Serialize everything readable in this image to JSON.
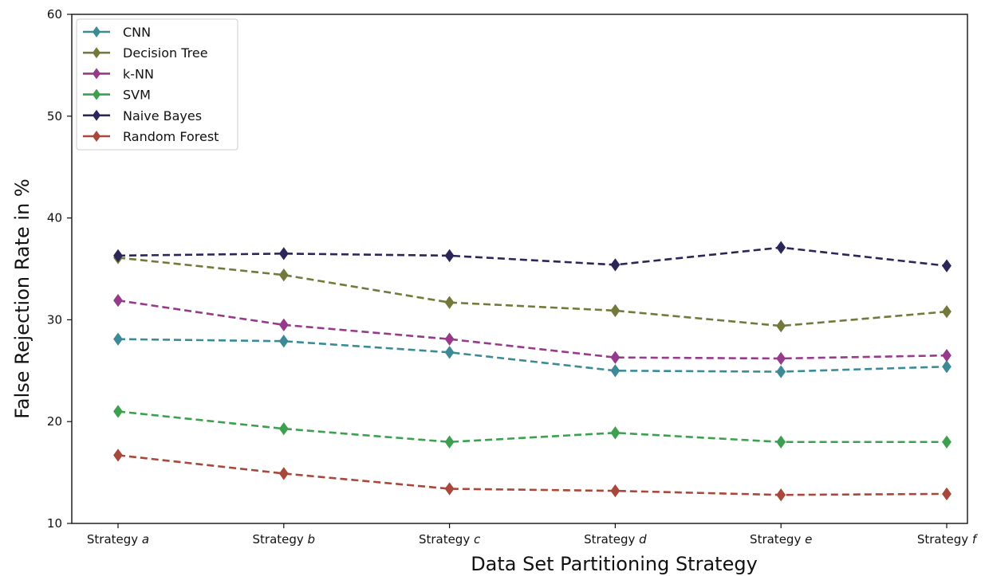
{
  "chart_data": {
    "type": "line",
    "categories": [
      {
        "prefix": "Strategy",
        "letter": "a"
      },
      {
        "prefix": "Strategy",
        "letter": "b"
      },
      {
        "prefix": "Strategy",
        "letter": "c"
      },
      {
        "prefix": "Strategy",
        "letter": "d"
      },
      {
        "prefix": "Strategy",
        "letter": "e"
      },
      {
        "prefix": "Strategy",
        "letter": "f"
      }
    ],
    "xlabel": "Data Set Partitioning Strategy",
    "ylabel": "False Rejection Rate in %",
    "ylim": [
      10,
      60
    ],
    "yticks": [
      10,
      20,
      30,
      40,
      50,
      60
    ],
    "grid": false,
    "legend_position": "top-left",
    "line_style": "dashed",
    "marker": "diamond",
    "series": [
      {
        "name": "CNN",
        "color": "#3c8a96",
        "values": [
          28.1,
          27.9,
          26.8,
          25.0,
          24.9,
          25.4
        ]
      },
      {
        "name": "Decision Tree",
        "color": "#74783a",
        "values": [
          36.1,
          34.4,
          31.7,
          30.9,
          29.4,
          30.8
        ]
      },
      {
        "name": "k-NN",
        "color": "#963a8c",
        "values": [
          31.9,
          29.5,
          28.1,
          26.3,
          26.2,
          26.5
        ]
      },
      {
        "name": "SVM",
        "color": "#3ca04e",
        "values": [
          21.0,
          19.3,
          18.0,
          18.9,
          18.0,
          18.0
        ]
      },
      {
        "name": "Naive Bayes",
        "color": "#2a2658",
        "values": [
          36.3,
          36.5,
          36.3,
          35.4,
          37.1,
          35.3
        ]
      },
      {
        "name": "Random Forest",
        "color": "#a8483a",
        "values": [
          16.7,
          14.9,
          13.4,
          13.2,
          12.8,
          12.9
        ]
      }
    ]
  }
}
